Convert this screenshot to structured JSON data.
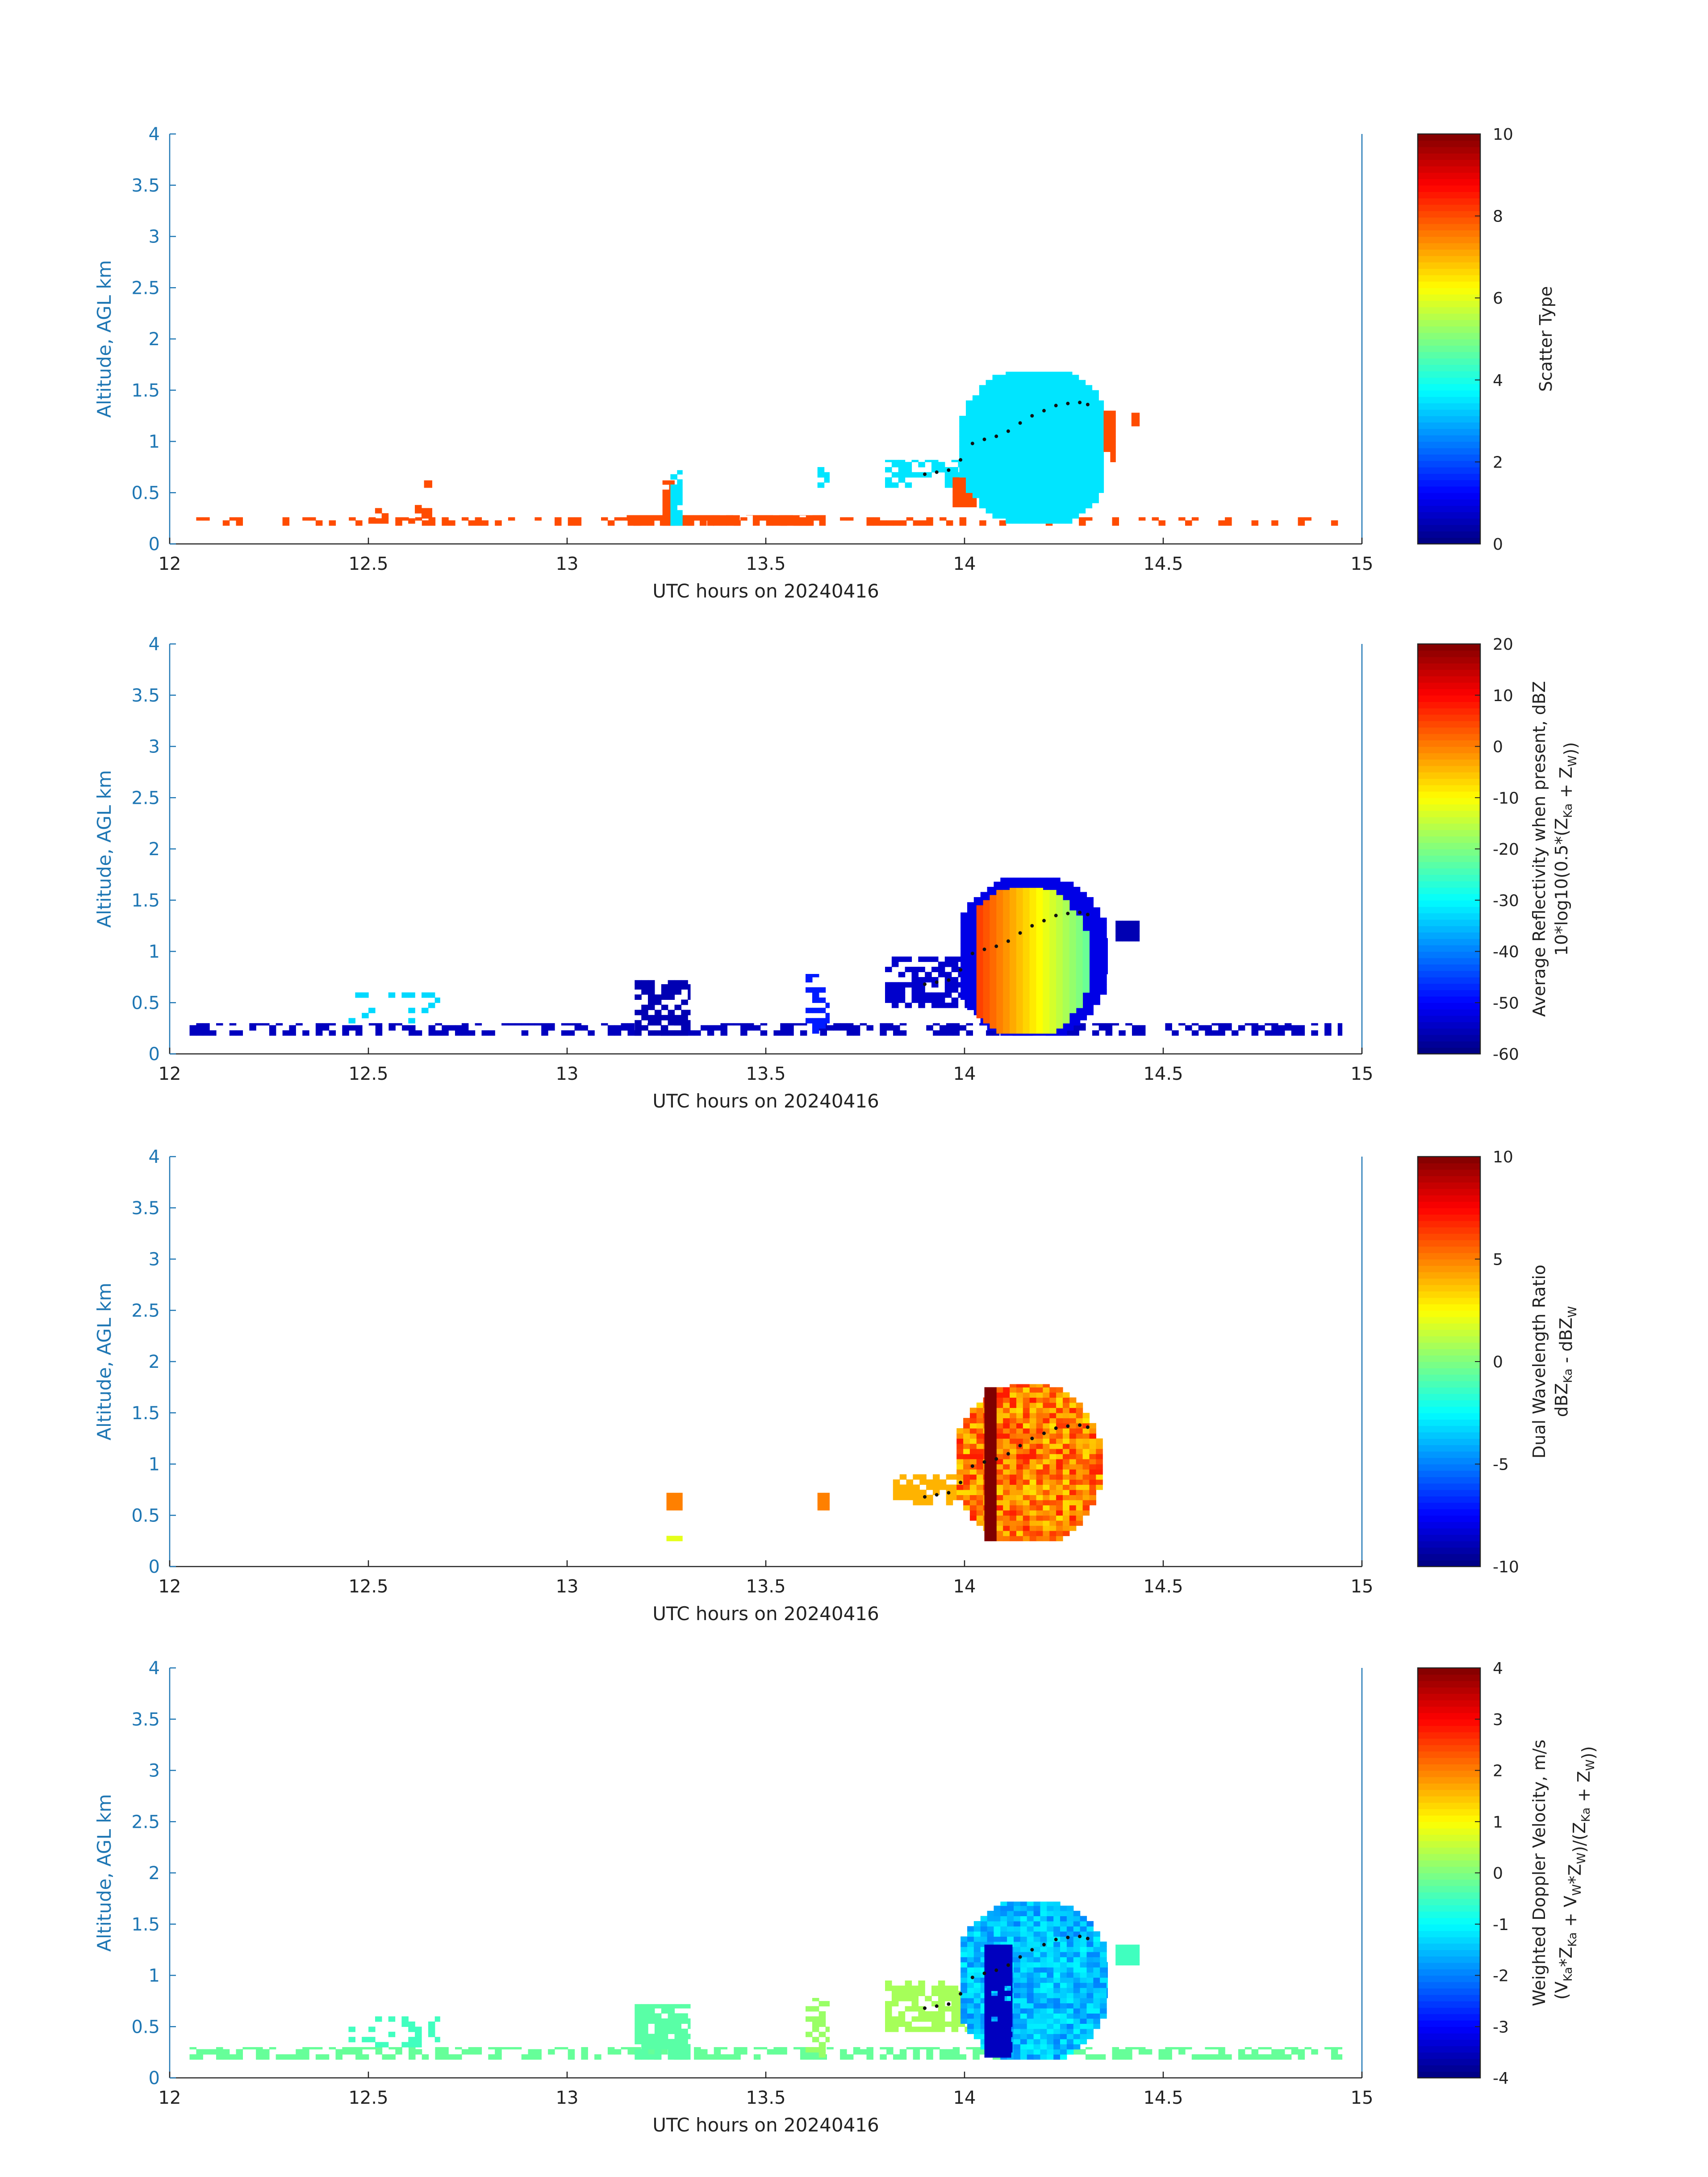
{
  "chart_data": [
    {
      "type": "heatmap",
      "panel": 1,
      "xlabel": "UTC hours on 20240416",
      "ylabel": "Altitude, AGL km",
      "xlim": [
        12,
        15
      ],
      "ylim": [
        0,
        4
      ],
      "xticks": [
        "12",
        "12.5",
        "13",
        "13.5",
        "14",
        "14.5",
        "15"
      ],
      "yticks": [
        "0",
        "0.5",
        "1",
        "1.5",
        "2",
        "2.5",
        "3",
        "3.5",
        "4"
      ],
      "colorbar": {
        "label": "Scatter Type",
        "label_line2": "",
        "range": [
          0,
          10
        ],
        "ticks": [
          "0",
          "2",
          "4",
          "6",
          "8",
          "10"
        ]
      },
      "regions": [
        {
          "x": [
            12.05,
            14.95
          ],
          "y": [
            0.18,
            0.26
          ],
          "value": 8,
          "density": 0.28
        },
        {
          "x": [
            12.5,
            12.66
          ],
          "y": [
            0.2,
            0.38
          ],
          "value": 8,
          "density": 0.35
        },
        {
          "x": [
            12.64,
            12.66
          ],
          "y": [
            0.55,
            0.62
          ],
          "value": 8,
          "density": 1
        },
        {
          "x": [
            13.15,
            13.65
          ],
          "y": [
            0.18,
            0.28
          ],
          "value": 8,
          "density": 0.7
        },
        {
          "x": [
            13.24,
            13.27
          ],
          "y": [
            0.18,
            0.62
          ],
          "value": 8,
          "density": 0.9
        },
        {
          "x": [
            13.26,
            13.29
          ],
          "y": [
            0.18,
            0.72
          ],
          "value": 3.5,
          "density": 0.9
        },
        {
          "x": [
            13.63,
            13.66
          ],
          "y": [
            0.55,
            0.75
          ],
          "value": 3.5,
          "density": 0.8
        },
        {
          "x": [
            13.8,
            14.0
          ],
          "y": [
            0.55,
            0.82
          ],
          "value": 3.5,
          "density": 0.6
        },
        {
          "x": [
            13.97,
            14.03
          ],
          "y": [
            0.36,
            0.65
          ],
          "value": 8,
          "density": 0.9
        },
        {
          "x": [
            13.97,
            14.35
          ],
          "y": [
            0.2,
            1.68
          ],
          "value": 3.5,
          "shape": "blob",
          "cx": 14.18,
          "cy": 0.95,
          "rx": 0.2,
          "ry": 0.8
        },
        {
          "x": [
            14.35,
            14.38
          ],
          "y": [
            0.8,
            1.3
          ],
          "value": 8,
          "density": 0.8
        },
        {
          "x": [
            14.42,
            14.44
          ],
          "y": [
            1.15,
            1.28
          ],
          "value": 8,
          "density": 1
        }
      ]
    },
    {
      "type": "heatmap",
      "panel": 2,
      "xlabel": "UTC hours on 20240416",
      "ylabel": "Altitude, AGL km",
      "xlim": [
        12,
        15
      ],
      "ylim": [
        0,
        4
      ],
      "xticks": [
        "12",
        "12.5",
        "13",
        "13.5",
        "14",
        "14.5",
        "15"
      ],
      "yticks": [
        "0",
        "0.5",
        "1",
        "1.5",
        "2",
        "2.5",
        "3",
        "3.5",
        "4"
      ],
      "colorbar": {
        "label": "Average Reflectivity when present, dBZ",
        "label_line2": "10*log10(0.5*(ZKa + ZW))",
        "range": [
          -60,
          20
        ],
        "ticks": [
          "-60",
          "-50",
          "-40",
          "-30",
          "-20",
          "-10",
          "0",
          "10",
          "20"
        ]
      },
      "regions": [
        {
          "x": [
            12.05,
            14.95
          ],
          "y": [
            0.18,
            0.3
          ],
          "value": -55,
          "density": 0.5
        },
        {
          "x": [
            12.45,
            12.68
          ],
          "y": [
            0.3,
            0.6
          ],
          "value": -33,
          "density": 0.3
        },
        {
          "x": [
            13.17,
            13.31
          ],
          "y": [
            0.18,
            0.72
          ],
          "value": -56,
          "density": 0.75
        },
        {
          "x": [
            13.6,
            13.66
          ],
          "y": [
            0.2,
            0.78
          ],
          "value": -48,
          "density": 0.5
        },
        {
          "x": [
            13.8,
            14.05
          ],
          "y": [
            0.45,
            0.95
          ],
          "value": -54,
          "density": 0.65
        },
        {
          "x": [
            13.99,
            14.36
          ],
          "y": [
            0.18,
            1.72
          ],
          "value": -52,
          "shape": "blob",
          "cx": 14.17,
          "cy": 0.95,
          "rx": 0.2,
          "ry": 0.82
        },
        {
          "x": [
            14.03,
            14.33
          ],
          "y": [
            0.2,
            1.62
          ],
          "value": -12,
          "shape": "blob",
          "cx": 14.15,
          "cy": 0.9,
          "rx": 0.17,
          "ry": 0.75,
          "gradient": [
            5,
            -25
          ]
        },
        {
          "x": [
            14.38,
            14.44
          ],
          "y": [
            1.1,
            1.3
          ],
          "value": -56,
          "density": 1
        }
      ]
    },
    {
      "type": "heatmap",
      "panel": 3,
      "xlabel": "UTC hours on 20240416",
      "ylabel": "Altitude, AGL km",
      "xlim": [
        12,
        15
      ],
      "ylim": [
        0,
        4
      ],
      "xticks": [
        "12",
        "12.5",
        "13",
        "13.5",
        "14",
        "14.5",
        "15"
      ],
      "yticks": [
        "0",
        "0.5",
        "1",
        "1.5",
        "2",
        "2.5",
        "3",
        "3.5",
        "4"
      ],
      "colorbar": {
        "label": "Dual Wavelength Ratio",
        "label_line2": "dBZKa - dBZW",
        "range": [
          -10,
          10
        ],
        "ticks": [
          "-10",
          "-5",
          "0",
          "5",
          "10"
        ]
      },
      "regions": [
        {
          "x": [
            13.25,
            13.29
          ],
          "y": [
            0.55,
            0.72
          ],
          "value": 5,
          "density": 1
        },
        {
          "x": [
            13.25,
            13.29
          ],
          "y": [
            0.25,
            0.3
          ],
          "value": 2,
          "density": 1
        },
        {
          "x": [
            13.63,
            13.66
          ],
          "y": [
            0.55,
            0.72
          ],
          "value": 5,
          "density": 1
        },
        {
          "x": [
            13.82,
            14.0
          ],
          "y": [
            0.6,
            0.9
          ],
          "value": 4,
          "density": 0.6
        },
        {
          "x": [
            13.98,
            14.35
          ],
          "y": [
            0.25,
            1.78
          ],
          "value": 5,
          "shape": "blob",
          "cx": 14.16,
          "cy": 1.0,
          "rx": 0.19,
          "ry": 0.8,
          "noise": 4
        },
        {
          "x": [
            14.05,
            14.08
          ],
          "y": [
            0.25,
            1.75
          ],
          "value": 10,
          "density": 1
        }
      ]
    },
    {
      "type": "heatmap",
      "panel": 4,
      "xlabel": "UTC hours on 20240416",
      "ylabel": "Altitude, AGL km",
      "xlim": [
        12,
        15
      ],
      "ylim": [
        0,
        4
      ],
      "xticks": [
        "12",
        "12.5",
        "13",
        "13.5",
        "14",
        "14.5",
        "15"
      ],
      "yticks": [
        "0",
        "0.5",
        "1",
        "1.5",
        "2",
        "2.5",
        "3",
        "3.5",
        "4"
      ],
      "colorbar": {
        "label": "Weighted Doppler Velocity, m/s",
        "label_line2": "(VKa*ZKa + VW*ZW)/(ZKa + ZW))",
        "range": [
          -4,
          4
        ],
        "ticks": [
          "-4",
          "-3",
          "-2",
          "-1",
          "0",
          "1",
          "2",
          "3",
          "4"
        ]
      },
      "regions": [
        {
          "x": [
            12.05,
            14.95
          ],
          "y": [
            0.18,
            0.3
          ],
          "value": -0.2,
          "density": 0.5
        },
        {
          "x": [
            12.45,
            12.68
          ],
          "y": [
            0.3,
            0.6
          ],
          "value": -0.5,
          "density": 0.3
        },
        {
          "x": [
            13.17,
            13.31
          ],
          "y": [
            0.18,
            0.72
          ],
          "value": -0.3,
          "density": 0.75
        },
        {
          "x": [
            13.6,
            13.66
          ],
          "y": [
            0.2,
            0.78
          ],
          "value": 0.2,
          "density": 0.5
        },
        {
          "x": [
            13.8,
            14.05
          ],
          "y": [
            0.45,
            0.95
          ],
          "value": 0.3,
          "density": 0.65
        },
        {
          "x": [
            13.99,
            14.36
          ],
          "y": [
            0.18,
            1.72
          ],
          "value": -1.5,
          "shape": "blob",
          "cx": 14.17,
          "cy": 0.95,
          "rx": 0.2,
          "ry": 0.82,
          "noise": 1.0
        },
        {
          "x": [
            14.05,
            14.12
          ],
          "y": [
            0.2,
            1.3
          ],
          "value": -3.5,
          "density": 0.9
        },
        {
          "x": [
            14.38,
            14.44
          ],
          "y": [
            1.1,
            1.3
          ],
          "value": -0.5,
          "density": 1
        }
      ]
    }
  ],
  "overlay_dots": {
    "x": [
      13.9,
      13.93,
      13.96,
      13.99,
      14.02,
      14.05,
      14.08,
      14.11,
      14.14,
      14.17,
      14.2,
      14.23,
      14.26,
      14.29,
      14.31
    ],
    "y": [
      0.68,
      0.7,
      0.72,
      0.82,
      0.98,
      1.02,
      1.05,
      1.1,
      1.18,
      1.25,
      1.3,
      1.35,
      1.37,
      1.38,
      1.36
    ]
  },
  "colormap": "jet"
}
